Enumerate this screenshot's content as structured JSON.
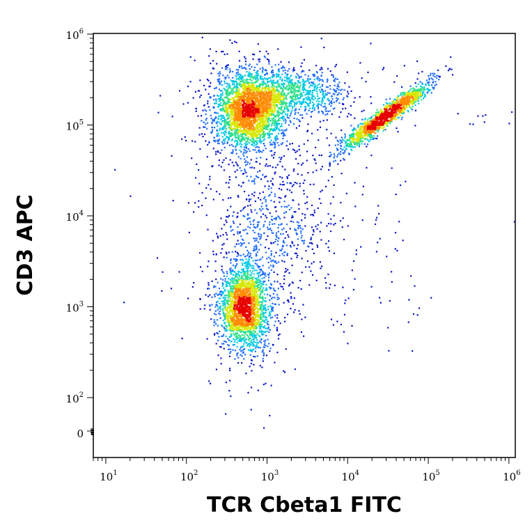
{
  "chart_data": {
    "type": "scatter",
    "style": "flow-cytometry-density-dot-plot",
    "xlabel": "TCR Cbeta1 FITC",
    "ylabel": "CD3 APC",
    "x_scale": "log",
    "y_scale": "biexponential",
    "xlim": [
      7,
      1200000
    ],
    "ylim": [
      -60,
      1300000
    ],
    "x_ticks": [
      {
        "base": "10",
        "exp": "1",
        "value": 10
      },
      {
        "base": "10",
        "exp": "2",
        "value": 100
      },
      {
        "base": "10",
        "exp": "3",
        "value": 1000
      },
      {
        "base": "10",
        "exp": "4",
        "value": 10000
      },
      {
        "base": "10",
        "exp": "5",
        "value": 100000
      },
      {
        "base": "10",
        "exp": "6",
        "value": 1000000
      }
    ],
    "y_ticks": [
      {
        "base": "0",
        "exp": "",
        "value": 0
      },
      {
        "base": "10",
        "exp": "2",
        "value": 100
      },
      {
        "base": "10",
        "exp": "3",
        "value": 1000
      },
      {
        "base": "10",
        "exp": "4",
        "value": 10000
      },
      {
        "base": "10",
        "exp": "5",
        "value": 100000
      },
      {
        "base": "10",
        "exp": "6",
        "value": 1000000
      }
    ],
    "grid": false,
    "density_colormap": [
      "#0a14c8",
      "#1e6cff",
      "#00c8e6",
      "#2ee08a",
      "#d8e800",
      "#ff8a00",
      "#e60000"
    ],
    "populations": [
      {
        "center_x": 600,
        "center_y": 140000,
        "spread_logx": 0.2,
        "spread_logy": 0.2,
        "relative_count": 1.0
      },
      {
        "center_x": 520,
        "center_y": 1000,
        "spread_logx": 0.14,
        "spread_logy": 0.22,
        "relative_count": 0.85
      },
      {
        "center_x": 30000,
        "center_y": 125000,
        "direction": "diagonal",
        "relative_count": 0.55
      },
      {
        "center_x": 2000,
        "center_y": 220000,
        "spread_logx": 0.35,
        "spread_logy": 0.12,
        "relative_count": 0.35
      },
      {
        "center_x": 1200,
        "center_y": 8000,
        "spread_logx": 0.45,
        "spread_logy": 0.45,
        "relative_count": 0.25
      }
    ]
  }
}
